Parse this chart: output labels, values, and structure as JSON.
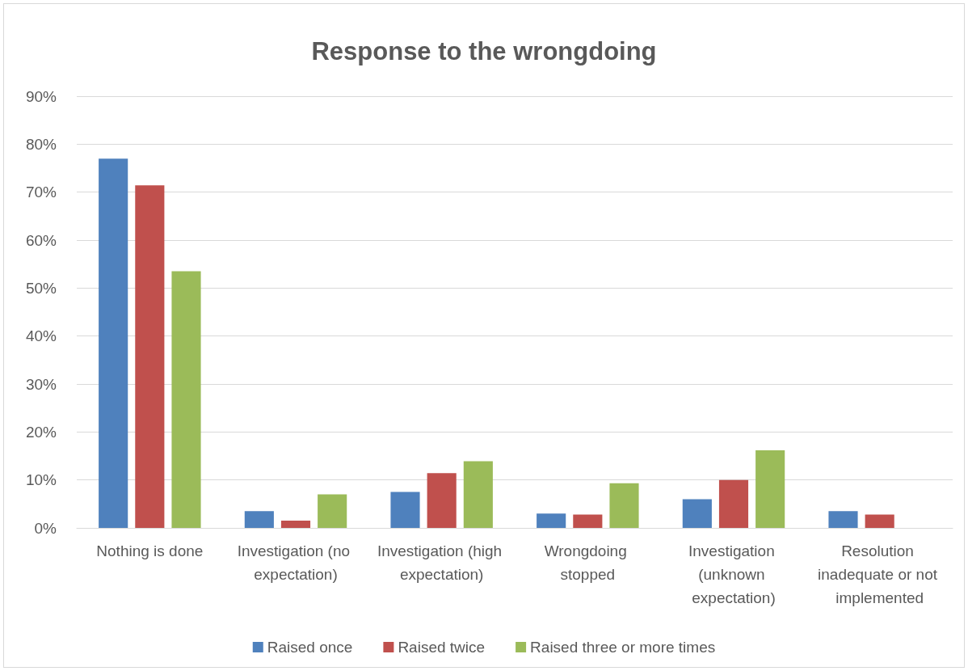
{
  "chart_data": {
    "type": "bar",
    "title": "Response to the wrongdoing",
    "categories": [
      "Nothing is done",
      "Investigation (no expectation)",
      "Investigation (high expectation)",
      "Wrongdoing stopped",
      "Investigation (unknown expectation)",
      "Resolution inadequate or not implemented"
    ],
    "series": [
      {
        "name": "Raised once",
        "color": "#4f81bd",
        "values": [
          77,
          3.5,
          7.5,
          3,
          6,
          3.5
        ]
      },
      {
        "name": "Raised twice",
        "color": "#c0504d",
        "values": [
          71.4,
          1.5,
          11.4,
          2.8,
          10,
          2.8
        ]
      },
      {
        "name": "Raised three or more times",
        "color": "#9bbb59",
        "values": [
          53.5,
          7,
          13.9,
          9.3,
          16.2,
          0
        ]
      }
    ],
    "ylim": [
      0,
      90
    ],
    "yticks": [
      {
        "value": 0,
        "label": "0%"
      },
      {
        "value": 10,
        "label": "10%"
      },
      {
        "value": 20,
        "label": "20%"
      },
      {
        "value": 30,
        "label": "30%"
      },
      {
        "value": 40,
        "label": "40%"
      },
      {
        "value": 50,
        "label": "50%"
      },
      {
        "value": 60,
        "label": "60%"
      },
      {
        "value": 70,
        "label": "70%"
      },
      {
        "value": 80,
        "label": "80%"
      },
      {
        "value": 90,
        "label": "90%"
      }
    ],
    "grid": "y",
    "legend": "bottom"
  }
}
